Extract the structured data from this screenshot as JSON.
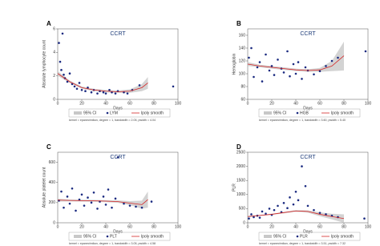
{
  "chart_data": [
    {
      "type": "scatter",
      "panel": "A",
      "title": "CCRT",
      "xlabel": "Days",
      "ylabel": "Absolute lymphocyte count",
      "xlim": [
        0,
        100
      ],
      "xticks": [
        0,
        20,
        40,
        60,
        80,
        100
      ],
      "ylim": [
        0,
        6
      ],
      "yticks": [
        0,
        2,
        4,
        6
      ],
      "series": [
        {
          "name": "LYM",
          "color": "#1a2a80",
          "x": [
            1,
            2,
            3,
            4,
            5,
            6,
            8,
            10,
            12,
            14,
            16,
            18,
            20,
            23,
            25,
            28,
            30,
            33,
            35,
            38,
            40,
            43,
            45,
            48,
            50,
            55,
            58,
            62,
            68,
            96
          ],
          "y": [
            4.8,
            3.2,
            2.5,
            5.6,
            2.1,
            1.8,
            1.5,
            2.2,
            1.3,
            1.1,
            0.9,
            1.4,
            0.8,
            0.7,
            1.0,
            0.6,
            0.8,
            0.5,
            0.7,
            0.6,
            0.5,
            0.8,
            0.6,
            0.5,
            0.7,
            0.6,
            0.5,
            0.8,
            1.2,
            1.1
          ]
        },
        {
          "name": "lpoly smooth",
          "color": "#d62728",
          "x": [
            0,
            10,
            20,
            30,
            40,
            50,
            60,
            70,
            75
          ],
          "y": [
            2.2,
            1.5,
            1.0,
            0.8,
            0.7,
            0.65,
            0.7,
            1.0,
            1.4
          ]
        }
      ],
      "ci": {
        "name": "95% CI",
        "color": "#c8c8c8",
        "x": [
          0,
          10,
          20,
          30,
          40,
          50,
          60,
          70,
          75
        ],
        "lower": [
          2.0,
          1.4,
          0.9,
          0.7,
          0.6,
          0.55,
          0.55,
          0.7,
          0.9
        ],
        "upper": [
          2.4,
          1.6,
          1.1,
          0.9,
          0.8,
          0.75,
          0.85,
          1.3,
          1.9
        ]
      },
      "note": "kernel = epanechnikov, degree = 1, bandwidth = 2.05, pwidth = 4.04"
    },
    {
      "type": "scatter",
      "panel": "B",
      "title": "CCRT",
      "xlabel": "Days",
      "ylabel": "Hemoglobin",
      "xlim": [
        0,
        100
      ],
      "xticks": [
        0,
        20,
        40,
        60,
        80,
        100
      ],
      "ylim": [
        60,
        170
      ],
      "yticks": [
        60,
        80,
        100,
        120,
        140,
        160
      ],
      "series": [
        {
          "name": "HGB",
          "color": "#1a2a80",
          "x": [
            1,
            3,
            5,
            8,
            10,
            12,
            15,
            18,
            20,
            22,
            25,
            28,
            30,
            33,
            35,
            38,
            40,
            42,
            45,
            48,
            50,
            55,
            60,
            65,
            70,
            75,
            98
          ],
          "y": [
            125,
            140,
            95,
            110,
            118,
            88,
            130,
            105,
            112,
            98,
            122,
            108,
            102,
            135,
            96,
            115,
            100,
            118,
            92,
            110,
            105,
            99,
            104,
            112,
            120,
            125,
            135
          ]
        },
        {
          "name": "lpoly smooth",
          "color": "#d62728",
          "x": [
            0,
            10,
            20,
            30,
            40,
            50,
            60,
            70,
            80
          ],
          "y": [
            115,
            112,
            110,
            108,
            106,
            105,
            106,
            112,
            128
          ]
        }
      ],
      "ci": {
        "name": "95% CI",
        "color": "#c8c8c8",
        "x": [
          0,
          10,
          20,
          30,
          40,
          50,
          60,
          70,
          80
        ],
        "lower": [
          112,
          110,
          108,
          106,
          104,
          103,
          103,
          104,
          105
        ],
        "upper": [
          118,
          114,
          112,
          110,
          108,
          107,
          109,
          120,
          150
        ]
      },
      "note": "kernel = epanechnikov, degree = 1, bandwidth = 3.60, pwidth = 5.40"
    },
    {
      "type": "scatter",
      "panel": "C",
      "title": "CCRT",
      "xlabel": "Days",
      "ylabel": "Absolute platelet count",
      "xlim": [
        0,
        100
      ],
      "xticks": [
        0,
        20,
        40,
        60,
        80,
        100
      ],
      "ylim": [
        0,
        700
      ],
      "yticks": [
        0,
        200,
        400,
        600
      ],
      "series": [
        {
          "name": "PLT",
          "color": "#1a2a80",
          "x": [
            1,
            3,
            5,
            8,
            10,
            12,
            15,
            18,
            20,
            22,
            25,
            28,
            30,
            33,
            35,
            38,
            40,
            42,
            45,
            48,
            50,
            55,
            60,
            65,
            70,
            78
          ],
          "y": [
            220,
            310,
            150,
            260,
            190,
            340,
            120,
            230,
            280,
            170,
            250,
            200,
            300,
            140,
            210,
            260,
            180,
            330,
            150,
            240,
            650,
            190,
            170,
            160,
            150,
            210
          ]
        },
        {
          "name": "lpoly smooth",
          "color": "#d62728",
          "x": [
            0,
            10,
            20,
            30,
            40,
            50,
            60,
            70,
            75
          ],
          "y": [
            225,
            222,
            220,
            218,
            215,
            210,
            195,
            180,
            230
          ]
        }
      ],
      "ci": {
        "name": "95% CI",
        "color": "#c8c8c8",
        "x": [
          0,
          10,
          20,
          30,
          40,
          50,
          60,
          70,
          75
        ],
        "lower": [
          210,
          212,
          210,
          208,
          205,
          198,
          175,
          140,
          150
        ],
        "upper": [
          240,
          232,
          230,
          228,
          225,
          222,
          215,
          220,
          310
        ]
      },
      "note": "kernel = epanechnikov, degree = 1, bandwidth = 3.05, pwidth = 4.58"
    },
    {
      "type": "scatter",
      "panel": "D",
      "title": "CCRT",
      "xlabel": "Days",
      "ylabel": "PLR",
      "xlim": [
        0,
        100
      ],
      "xticks": [
        0,
        20,
        40,
        60,
        80,
        100
      ],
      "ylim": [
        0,
        2500
      ],
      "yticks": [
        0,
        500,
        1000,
        1500,
        2000,
        2500
      ],
      "series": [
        {
          "name": "PLR",
          "color": "#1a2a80",
          "x": [
            1,
            3,
            5,
            8,
            10,
            12,
            15,
            18,
            20,
            22,
            25,
            28,
            30,
            33,
            35,
            38,
            40,
            42,
            45,
            48,
            50,
            55,
            60,
            65,
            70,
            75,
            97
          ],
          "y": [
            150,
            300,
            200,
            250,
            180,
            400,
            320,
            500,
            280,
            450,
            600,
            380,
            700,
            520,
            900,
            650,
            1100,
            800,
            2000,
            1300,
            600,
            450,
            350,
            300,
            250,
            200,
            150
          ]
        },
        {
          "name": "lpoly smooth",
          "color": "#d62728",
          "x": [
            0,
            10,
            20,
            30,
            40,
            50,
            60,
            70,
            80
          ],
          "y": [
            220,
            260,
            300,
            360,
            420,
            400,
            300,
            220,
            150
          ]
        }
      ],
      "ci": {
        "name": "95% CI",
        "color": "#c8c8c8",
        "x": [
          0,
          10,
          20,
          30,
          40,
          50,
          60,
          70,
          80
        ],
        "lower": [
          190,
          240,
          280,
          335,
          390,
          360,
          230,
          120,
          0
        ],
        "upper": [
          250,
          280,
          320,
          385,
          450,
          440,
          370,
          320,
          300
        ]
      },
      "note": "kernel = epanechnikov, degree = 1, bandwidth = 3.51, pwidth = 7.32"
    }
  ]
}
